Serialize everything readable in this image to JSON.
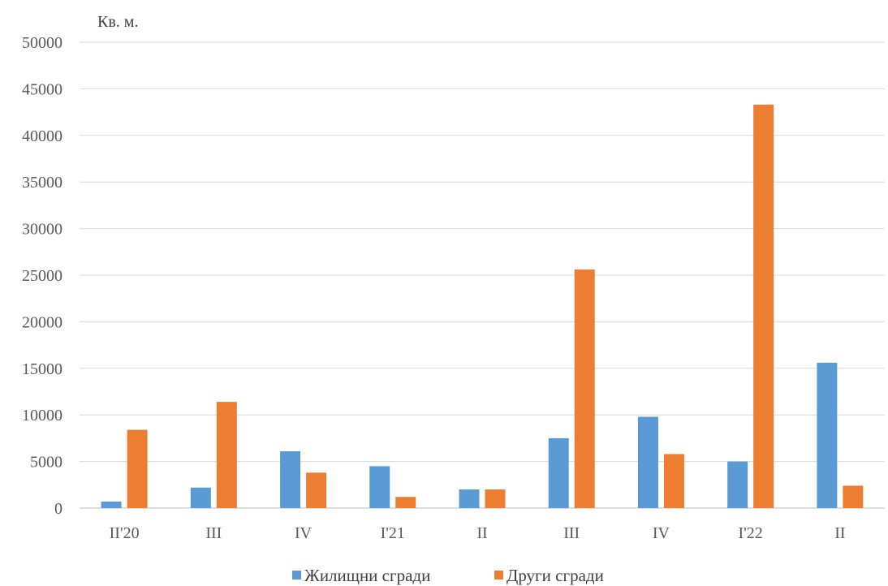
{
  "chart_data": {
    "type": "bar",
    "title": "",
    "unit_label": "Кв. м.",
    "categories": [
      "II'20",
      "III",
      "IV",
      "I'21",
      "II",
      "III",
      "IV",
      "I'22",
      "II"
    ],
    "series": [
      {
        "name": "Жилищни сгради",
        "color": "#5b9bd5",
        "values": [
          700,
          2200,
          6100,
          4500,
          2000,
          7500,
          9800,
          5000,
          15600
        ]
      },
      {
        "name": "Други сгради",
        "color": "#ed7d31",
        "values": [
          8400,
          11400,
          3800,
          1200,
          2000,
          25600,
          5800,
          43300,
          2400
        ]
      }
    ],
    "ylim": [
      0,
      50000
    ],
    "yticks": [
      0,
      5000,
      10000,
      15000,
      20000,
      25000,
      30000,
      35000,
      40000,
      45000,
      50000
    ],
    "grid": true,
    "legend_position": "bottom"
  }
}
